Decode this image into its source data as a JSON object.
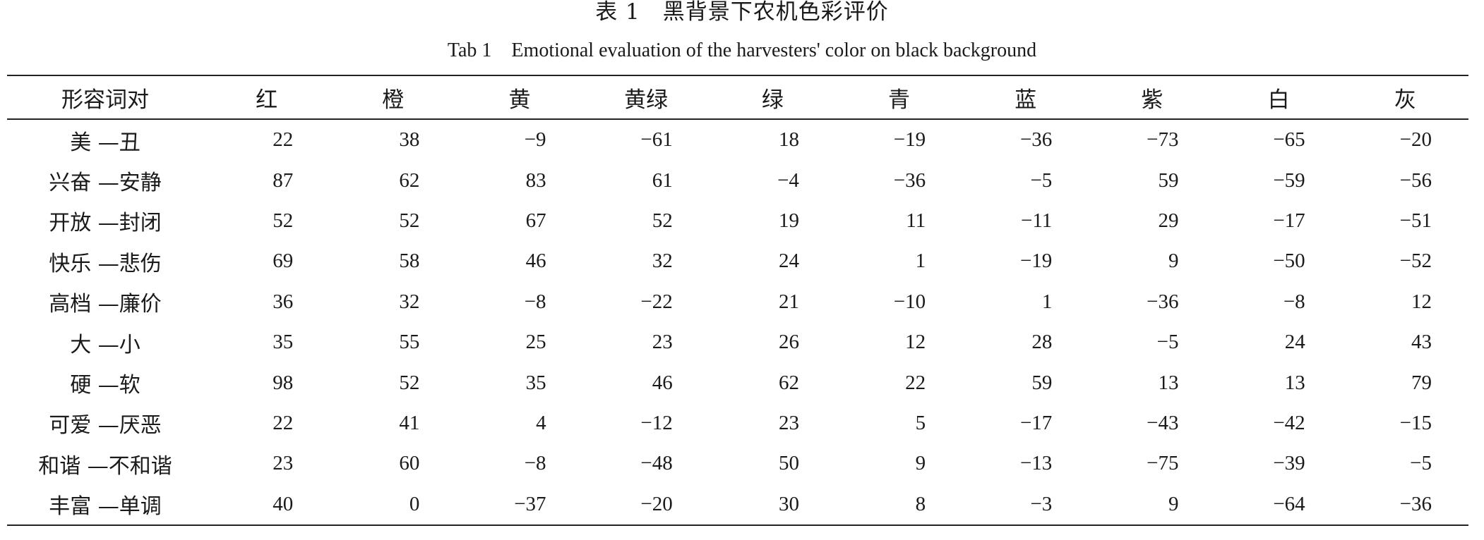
{
  "caption": {
    "cn": "表 1　黑背景下农机色彩评价",
    "en": "Tab 1　Emotional evaluation of the harvesters' color on black background"
  },
  "table": {
    "headers": [
      "形容词对",
      "红",
      "橙",
      "黄",
      "黄绿",
      "绿",
      "青",
      "蓝",
      "紫",
      "白",
      "灰"
    ],
    "rows": [
      {
        "pair": "美 —丑",
        "values": [
          "22",
          "38",
          "−9",
          "−61",
          "18",
          "−19",
          "−36",
          "−73",
          "−65",
          "−20"
        ]
      },
      {
        "pair": "兴奋 —安静",
        "values": [
          "87",
          "62",
          "83",
          "61",
          "−4",
          "−36",
          "−5",
          "59",
          "−59",
          "−56"
        ]
      },
      {
        "pair": "开放 —封闭",
        "values": [
          "52",
          "52",
          "67",
          "52",
          "19",
          "11",
          "−11",
          "29",
          "−17",
          "−51"
        ]
      },
      {
        "pair": "快乐 —悲伤",
        "values": [
          "69",
          "58",
          "46",
          "32",
          "24",
          "1",
          "−19",
          "9",
          "−50",
          "−52"
        ]
      },
      {
        "pair": "高档 —廉价",
        "values": [
          "36",
          "32",
          "−8",
          "−22",
          "21",
          "−10",
          "1",
          "−36",
          "−8",
          "12"
        ]
      },
      {
        "pair": "大 —小",
        "values": [
          "35",
          "55",
          "25",
          "23",
          "26",
          "12",
          "28",
          "−5",
          "24",
          "43"
        ]
      },
      {
        "pair": "硬 —软",
        "values": [
          "98",
          "52",
          "35",
          "46",
          "62",
          "22",
          "59",
          "13",
          "13",
          "79"
        ]
      },
      {
        "pair": "可爱 —厌恶",
        "values": [
          "22",
          "41",
          "4",
          "−12",
          "23",
          "5",
          "−17",
          "−43",
          "−42",
          "−15"
        ]
      },
      {
        "pair": "和谐 —不和谐",
        "values": [
          "23",
          "60",
          "−8",
          "−48",
          "50",
          "9",
          "−13",
          "−75",
          "−39",
          "−5"
        ]
      },
      {
        "pair": "丰富 —单调",
        "values": [
          "40",
          "0",
          "−37",
          "−20",
          "30",
          "8",
          "−3",
          "9",
          "−64",
          "−36"
        ]
      }
    ]
  }
}
